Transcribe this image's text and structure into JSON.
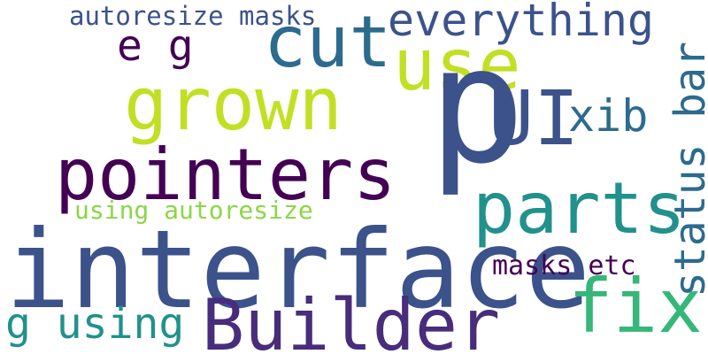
{
  "words": [
    {
      "text": "autoresize masks",
      "color": "#3b528b"
    },
    {
      "text": "everything",
      "color": "#3b528b"
    },
    {
      "text": "cut",
      "color": "#2c6b8e"
    },
    {
      "text": "e g",
      "color": "#440154"
    },
    {
      "text": "use",
      "color": "#c2df23"
    },
    {
      "text": "p",
      "color": "#3b528b"
    },
    {
      "text": "grown",
      "color": "#c2df23"
    },
    {
      "text": "UI",
      "color": "#3b528b"
    },
    {
      "text": "xib",
      "color": "#2c6b8e"
    },
    {
      "text": "status bar",
      "color": "#2c6b8e"
    },
    {
      "text": "pointers",
      "color": "#440154"
    },
    {
      "text": "parts",
      "color": "#21918c"
    },
    {
      "text": "using autoresize",
      "color": "#8cd646"
    },
    {
      "text": "interface",
      "color": "#3b528b"
    },
    {
      "text": "masks etc",
      "color": "#440154"
    },
    {
      "text": "fix",
      "color": "#35b779"
    },
    {
      "text": "g using",
      "color": "#21918c"
    },
    {
      "text": "Builder",
      "color": "#472d7b"
    }
  ]
}
